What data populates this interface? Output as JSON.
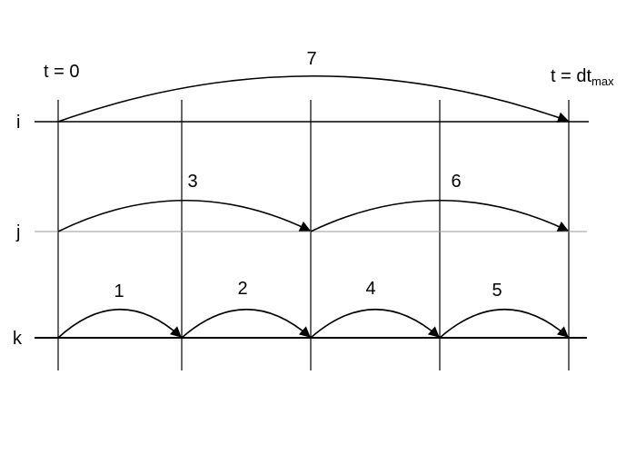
{
  "time_labels": {
    "start": "t = 0",
    "end_main": "t = dt",
    "end_sub": "max"
  },
  "rows": [
    {
      "id": "i",
      "label": "i",
      "color": "#000000"
    },
    {
      "id": "j",
      "label": "j",
      "color": "#999999"
    },
    {
      "id": "k",
      "label": "k",
      "color": "#000000"
    }
  ],
  "steps": [
    {
      "label": "1",
      "row": "k",
      "from": 0,
      "to": 1
    },
    {
      "label": "2",
      "row": "k",
      "from": 1,
      "to": 2
    },
    {
      "label": "3",
      "row": "j",
      "from": 0,
      "to": 2
    },
    {
      "label": "4",
      "row": "k",
      "from": 2,
      "to": 3
    },
    {
      "label": "5",
      "row": "k",
      "from": 3,
      "to": 4
    },
    {
      "label": "6",
      "row": "j",
      "from": 2,
      "to": 4
    },
    {
      "label": "7",
      "row": "i",
      "from": 0,
      "to": 4
    }
  ],
  "colors": {
    "line": "#000000",
    "arc": "#000000",
    "faint_line": "#999999"
  }
}
